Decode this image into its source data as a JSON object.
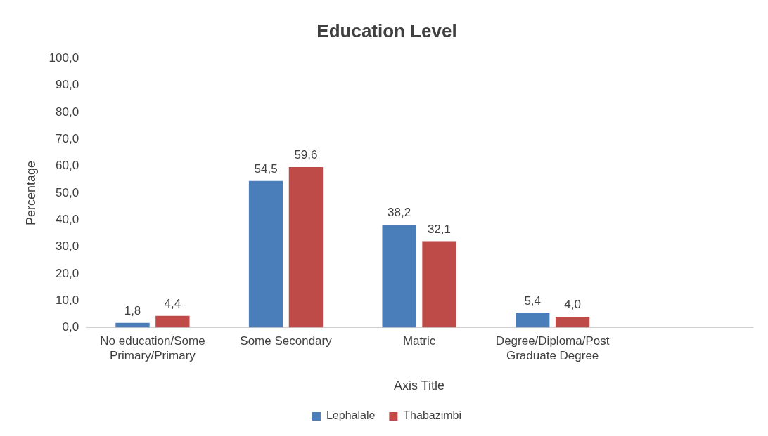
{
  "chart_data": {
    "type": "bar",
    "title": "Education Level",
    "xlabel": "Axis Title",
    "ylabel": "Percentage",
    "categories": [
      "No education/Some Primary/Primary",
      "Some Secondary",
      "Matric",
      "Degree/Diploma/Post Graduate Degree",
      null
    ],
    "series": [
      {
        "name": "Lephalale",
        "color": "#4a7ebb",
        "values": [
          1.8,
          54.5,
          38.2,
          5.4,
          null
        ],
        "value_labels": [
          "1,8",
          "54,5",
          "38,2",
          "5,4",
          null
        ]
      },
      {
        "name": "Thabazimbi",
        "color": "#be4b48",
        "values": [
          4.4,
          59.6,
          32.1,
          4.0,
          null
        ],
        "value_labels": [
          "4,4",
          "59,6",
          "32,1",
          "4,0",
          null
        ]
      }
    ],
    "ylim": [
      0,
      100
    ],
    "yticks": [
      {
        "value": 0,
        "label": "0,0"
      },
      {
        "value": 10,
        "label": "10,0"
      },
      {
        "value": 20,
        "label": "20,0"
      },
      {
        "value": 30,
        "label": "30,0"
      },
      {
        "value": 40,
        "label": "40,0"
      },
      {
        "value": 50,
        "label": "50,0"
      },
      {
        "value": 60,
        "label": "60,0"
      },
      {
        "value": 70,
        "label": "70,0"
      },
      {
        "value": 80,
        "label": "80,0"
      },
      {
        "value": 90,
        "label": "90,0"
      },
      {
        "value": 100,
        "label": "100,0"
      }
    ],
    "grid": false,
    "legend": "bottom"
  }
}
